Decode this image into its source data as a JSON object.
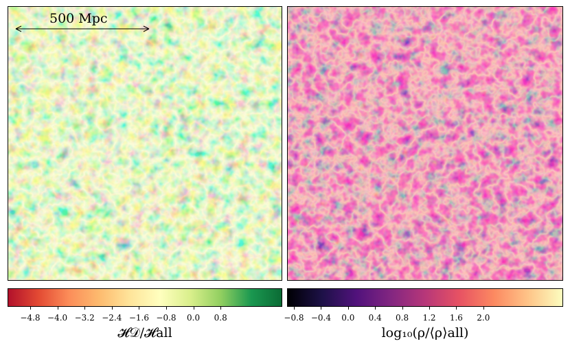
{
  "scale_bar": {
    "label": "500 Mpc"
  },
  "left_panel": {
    "colormap": "greens-yellow-red"
  },
  "right_panel": {
    "colormap": "magma"
  },
  "colorbar_left": {
    "label": "𝓗𝒟/𝓗all",
    "ticks": [
      "−4.8",
      "−4.0",
      "−3.2",
      "−2.4",
      "−1.6",
      "−0.8",
      "0.0",
      "0.8"
    ],
    "colors": [
      "#b2112b",
      "#e34a33",
      "#fc8d59",
      "#fdbb6f",
      "#fee49a",
      "#ffffbf",
      "#d9ef8b",
      "#91cf60",
      "#1a9850",
      "#0b6b35"
    ]
  },
  "colorbar_right": {
    "label": "log₁₀(ρ/⟨ρ⟩all)",
    "ticks": [
      "−0.8",
      "−0.4",
      "0.0",
      "0.4",
      "0.8",
      "1.2",
      "1.6",
      "2.0"
    ],
    "colors": [
      "#000004",
      "#1d1147",
      "#51127c",
      "#822681",
      "#b73779",
      "#e75263",
      "#fc8961",
      "#fec488",
      "#fcfdbf"
    ]
  }
}
